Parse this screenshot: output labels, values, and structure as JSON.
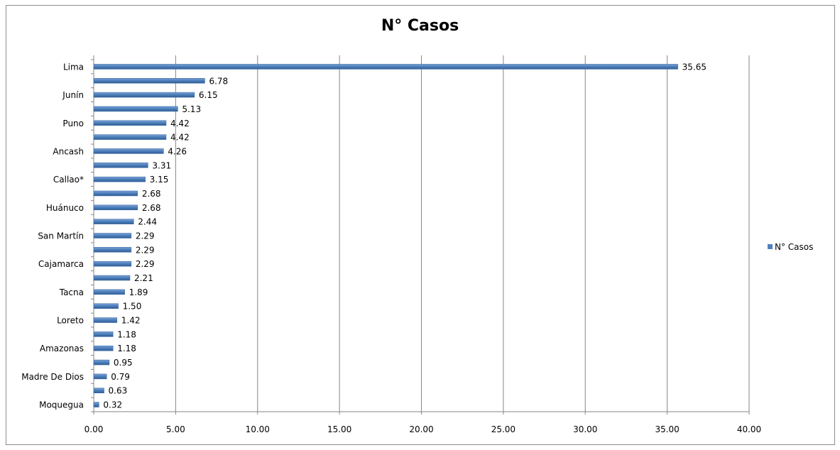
{
  "chart_data": {
    "type": "bar",
    "orientation": "horizontal",
    "title": "N° Casos",
    "xlim": [
      0,
      40
    ],
    "xticks": [
      "0.00",
      "5.00",
      "10.00",
      "15.00",
      "20.00",
      "25.00",
      "30.00",
      "35.00",
      "40.00"
    ],
    "grid": "vertical",
    "legend_position": "right",
    "categories": [
      "Lima",
      "",
      "Junín",
      "",
      "Puno",
      "",
      "Ancash",
      "",
      "Callao*",
      "",
      "Huánuco",
      "",
      "San Martín",
      "",
      "Cajamarca",
      "",
      "Tacna",
      "",
      "Loreto",
      "",
      "Amazonas",
      "",
      "Madre De Dios",
      "",
      "Moquegua"
    ],
    "series": [
      {
        "name": "N° Casos",
        "values": [
          35.65,
          6.78,
          6.15,
          5.13,
          4.42,
          4.42,
          4.26,
          3.31,
          3.15,
          2.68,
          2.68,
          2.44,
          2.29,
          2.29,
          2.29,
          2.21,
          1.89,
          1.5,
          1.42,
          1.18,
          1.18,
          0.95,
          0.79,
          0.63,
          0.32
        ],
        "labels": [
          "35.65",
          "6.78",
          "6.15",
          "5.13",
          "4.42",
          "4.42",
          "4.26",
          "3.31",
          "3.15",
          "2.68",
          "2.68",
          "2.44",
          "2.29",
          "2.29",
          "2.29",
          "2.21",
          "1.89",
          "1.50",
          "1.42",
          "1.18",
          "1.18",
          "0.95",
          "0.79",
          "0.63",
          "0.32"
        ],
        "color": "#4f81bd"
      }
    ]
  }
}
